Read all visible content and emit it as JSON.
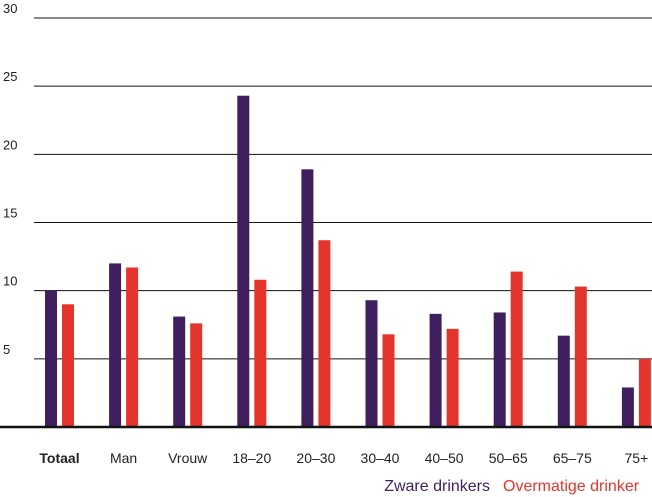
{
  "chart_data": {
    "type": "bar",
    "categories": [
      "Totaal",
      "Man",
      "Vrouw",
      "18-20",
      "20-30",
      "30-40",
      "40-50",
      "50-65",
      "65-75",
      "75+"
    ],
    "bold_categories": [
      "Totaal"
    ],
    "series": [
      {
        "name": "Zware drinkers",
        "color": "#3f1f5e",
        "values": [
          10.0,
          12.0,
          8.1,
          24.3,
          18.9,
          9.3,
          8.3,
          8.4,
          6.7,
          2.9
        ]
      },
      {
        "name": "Overmatige drinker",
        "color": "#e4352c",
        "values": [
          9.0,
          11.7,
          7.6,
          10.8,
          13.7,
          6.8,
          7.2,
          11.4,
          10.3,
          5.0
        ]
      }
    ],
    "yticks": [
      5,
      10,
      15,
      20,
      25,
      30
    ],
    "ylim": [
      0,
      30
    ],
    "grid": true,
    "legend_position": "bottom-right",
    "title": "",
    "xlabel": "",
    "ylabel": ""
  }
}
